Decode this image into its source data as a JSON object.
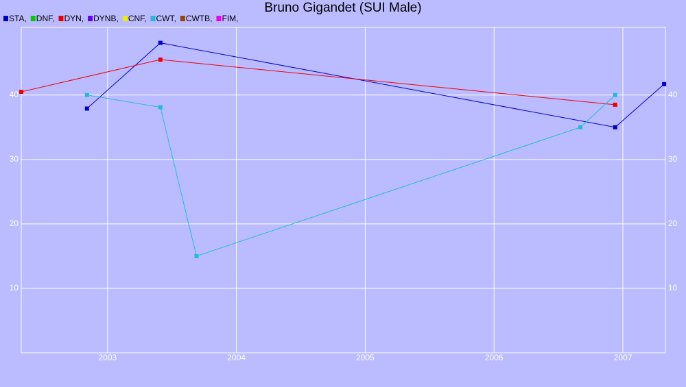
{
  "chart_data": {
    "type": "line",
    "title": "Bruno Gigandet (SUI Male)",
    "series": [
      {
        "name": "STA,",
        "color": "#0000cc",
        "x": [
          2002.84,
          2003.41,
          2006.94,
          2007.32
        ],
        "values": [
          37.9,
          48.1,
          35.0,
          41.7
        ]
      },
      {
        "name": "DNF,",
        "color": "#00cc00",
        "x": [],
        "values": []
      },
      {
        "name": "DYN,",
        "color": "#ee0000",
        "x": [
          2002.33,
          2003.41,
          2006.94
        ],
        "values": [
          40.5,
          45.5,
          38.5
        ]
      },
      {
        "name": "DYNB,",
        "color": "#6600ee",
        "x": [],
        "values": []
      },
      {
        "name": "CNF,",
        "color": "#eeee00",
        "x": [],
        "values": []
      },
      {
        "name": "CWT,",
        "color": "#22bbdd",
        "x": [
          2002.84,
          2003.41,
          2003.69,
          2006.67,
          2006.94
        ],
        "values": [
          40.0,
          38.1,
          15.0,
          35.0,
          40.0
        ]
      },
      {
        "name": "CWTB,",
        "color": "#994400",
        "x": [],
        "values": []
      },
      {
        "name": "FIM,",
        "color": "#ee00ee",
        "x": [],
        "values": []
      }
    ],
    "xlim": [
      2002.33,
      2007.33
    ],
    "xticks": [
      2003,
      2004,
      2005,
      2006,
      2007
    ],
    "ylim": [
      0,
      50.5
    ],
    "yticks": [
      10,
      20,
      30,
      40
    ],
    "grid": true
  }
}
